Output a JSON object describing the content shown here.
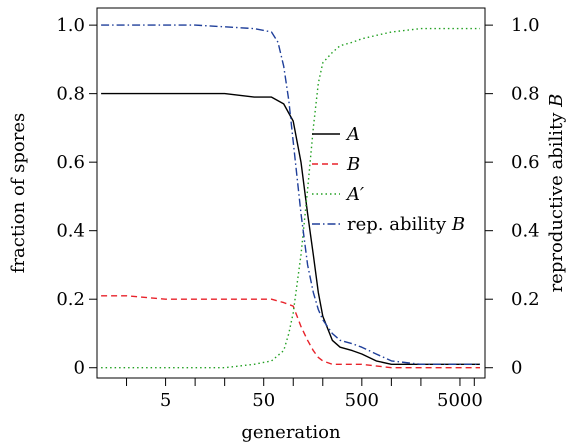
{
  "chart_data": {
    "type": "line",
    "xlabel": "generation",
    "ylabel_left": "fraction of spores",
    "ylabel_right": "reproductive ability B",
    "x_scale": "log",
    "xlim": [
      1,
      9000
    ],
    "ylim": [
      -0.03,
      1.05
    ],
    "x_tick_labels": [
      "5",
      "50",
      "500",
      "5000"
    ],
    "x_tick_values": [
      5,
      50,
      500,
      5000
    ],
    "x_minor_ticks": [
      2,
      10,
      20,
      100,
      200,
      1000,
      2000,
      7000
    ],
    "y_ticks_left": [
      {
        "label": "0",
        "value": 0
      },
      {
        "label": "0.2",
        "value": 0.2
      },
      {
        "label": "0.4",
        "value": 0.4
      },
      {
        "label": "0.6",
        "value": 0.6
      },
      {
        "label": "0.8",
        "value": 0.8
      },
      {
        "label": "1.0",
        "value": 1.0
      }
    ],
    "y_ticks_right": [
      {
        "label": "0",
        "value": 0
      },
      {
        "label": "0.2",
        "value": 0.2
      },
      {
        "label": "0.4",
        "value": 0.4
      },
      {
        "label": "0.6",
        "value": 0.6
      },
      {
        "label": "0.8",
        "value": 0.8
      },
      {
        "label": "1.0",
        "value": 1.0
      }
    ],
    "legend_position": "center-right",
    "series": [
      {
        "name": "A",
        "color": "#000000",
        "dash": "solid",
        "x": [
          1.1,
          2,
          5,
          10,
          20,
          40,
          60,
          80,
          100,
          120,
          140,
          160,
          180,
          200,
          250,
          300,
          400,
          500,
          700,
          1000,
          2000,
          5000,
          8000
        ],
        "y": [
          0.8,
          0.8,
          0.8,
          0.8,
          0.8,
          0.79,
          0.79,
          0.77,
          0.72,
          0.6,
          0.45,
          0.33,
          0.22,
          0.15,
          0.08,
          0.06,
          0.05,
          0.04,
          0.02,
          0.01,
          0.01,
          0.01,
          0.01
        ]
      },
      {
        "name": "B",
        "color": "#e8222a",
        "dash": "dashed",
        "x": [
          1.1,
          2,
          5,
          10,
          20,
          40,
          60,
          80,
          100,
          120,
          140,
          160,
          180,
          200,
          250,
          300,
          500,
          1000,
          5000,
          8000
        ],
        "y": [
          0.21,
          0.21,
          0.2,
          0.2,
          0.2,
          0.2,
          0.2,
          0.19,
          0.18,
          0.12,
          0.08,
          0.05,
          0.03,
          0.02,
          0.01,
          0.01,
          0.01,
          0.0,
          0.0,
          0.0
        ]
      },
      {
        "name": "A′",
        "color": "#22a022",
        "dash": "dotted",
        "x": [
          1.1,
          2,
          5,
          10,
          20,
          40,
          60,
          80,
          90,
          100,
          120,
          140,
          160,
          180,
          200,
          250,
          300,
          400,
          500,
          700,
          1000,
          2000,
          5000,
          8000
        ],
        "y": [
          0.0,
          0.0,
          0.0,
          0.0,
          0.0,
          0.01,
          0.02,
          0.05,
          0.1,
          0.16,
          0.33,
          0.52,
          0.7,
          0.83,
          0.89,
          0.92,
          0.94,
          0.95,
          0.96,
          0.97,
          0.98,
          0.99,
          0.99,
          0.99
        ]
      },
      {
        "name": "rep. ability B",
        "color": "#1f3f9a",
        "dash": "dashdot",
        "x": [
          1.1,
          2,
          5,
          10,
          20,
          40,
          60,
          70,
          80,
          90,
          100,
          120,
          140,
          160,
          180,
          200,
          250,
          300,
          400,
          500,
          700,
          1000,
          2000,
          5000,
          8000
        ],
        "y": [
          1.0,
          1.0,
          1.0,
          1.0,
          0.995,
          0.99,
          0.98,
          0.95,
          0.88,
          0.78,
          0.66,
          0.45,
          0.3,
          0.22,
          0.17,
          0.14,
          0.1,
          0.08,
          0.07,
          0.06,
          0.04,
          0.02,
          0.01,
          0.01,
          0.01
        ]
      }
    ]
  },
  "legend": {
    "items": [
      {
        "label_main": "A",
        "label_suffix": "",
        "italic": true
      },
      {
        "label_main": "B",
        "label_suffix": "",
        "italic": true
      },
      {
        "label_main": "A′",
        "label_suffix": "",
        "italic": true
      },
      {
        "label_main": "rep. ability ",
        "label_suffix": "B",
        "italic": false
      }
    ]
  }
}
